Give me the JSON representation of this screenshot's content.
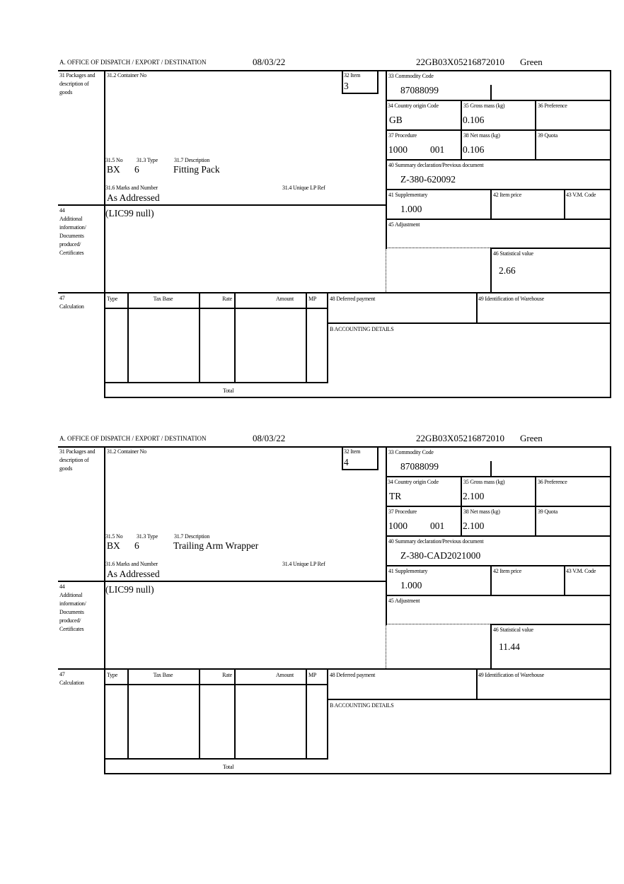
{
  "labels": {
    "office": "A. OFFICE OF DISPATCH / EXPORT / DESTINATION",
    "packages": "31 Packages and description of goods",
    "container": "31.2 Container No",
    "item": "32 Item",
    "commodity": "33 Commodity Code",
    "country": "34 Country origin Code",
    "gross": "35 Gross mass (kg)",
    "preference": "36 Preference",
    "procedure": "37 Procedure",
    "net": "38 Net mass (kg)",
    "quota": "39 Quota",
    "summary": "40 Summary declaration/Previous document",
    "supplementary": "41 Supplementary",
    "item_price": "42 Item price",
    "vm_code": "43 V.M. Code",
    "adjustment": "45 Adjustment",
    "statistical": "46 Statistical value",
    "no": "31.5 No",
    "type": "31.3 Type",
    "description": "31.7 Description",
    "marks": "31.6 Marks and Number",
    "unique_lp": "31.4 Unique LP Ref",
    "additional_num": "44",
    "additional": "Additional information/ Documents produced/ Certificates",
    "calc_num": "47",
    "calculation": "Calculation",
    "col_type": "Type",
    "col_tax_base": "Tax Base",
    "col_rate": "Rate",
    "col_amount": "Amount",
    "col_mp": "MP",
    "deferred": "48 Deferred payment",
    "warehouse": "49 Identification of Warehouse",
    "accounting": "B ACCOUNTING DETAILS",
    "total": "Total"
  },
  "forms": [
    {
      "date": "08/03/22",
      "reference": "22GB03X05216872010",
      "route": "Green",
      "item": "3",
      "commodity_code": "87088099",
      "country": "GB",
      "gross_mass": "0.106",
      "procedure": "1000",
      "procedure_extra": "001",
      "net_mass": "0.106",
      "summary_doc": "Z-380-620092",
      "supplementary": "1.000",
      "statistical_value": "2.66",
      "pkg_no": "BX",
      "pkg_type": "6",
      "description": "Fitting Pack",
      "marks": "As Addressed",
      "additional": "(LIC99 null)"
    },
    {
      "date": "08/03/22",
      "reference": "22GB03X05216872010",
      "route": "Green",
      "item": "4",
      "commodity_code": "87088099",
      "country": "TR",
      "gross_mass": "2.100",
      "procedure": "1000",
      "procedure_extra": "001",
      "net_mass": "2.100",
      "summary_doc": "Z-380-CAD2021000",
      "supplementary": "1.000",
      "statistical_value": "11.44",
      "pkg_no": "BX",
      "pkg_type": "6",
      "description": "Trailing Arm Wrapper",
      "marks": "As Addressed",
      "additional": "(LIC99 null)"
    }
  ]
}
